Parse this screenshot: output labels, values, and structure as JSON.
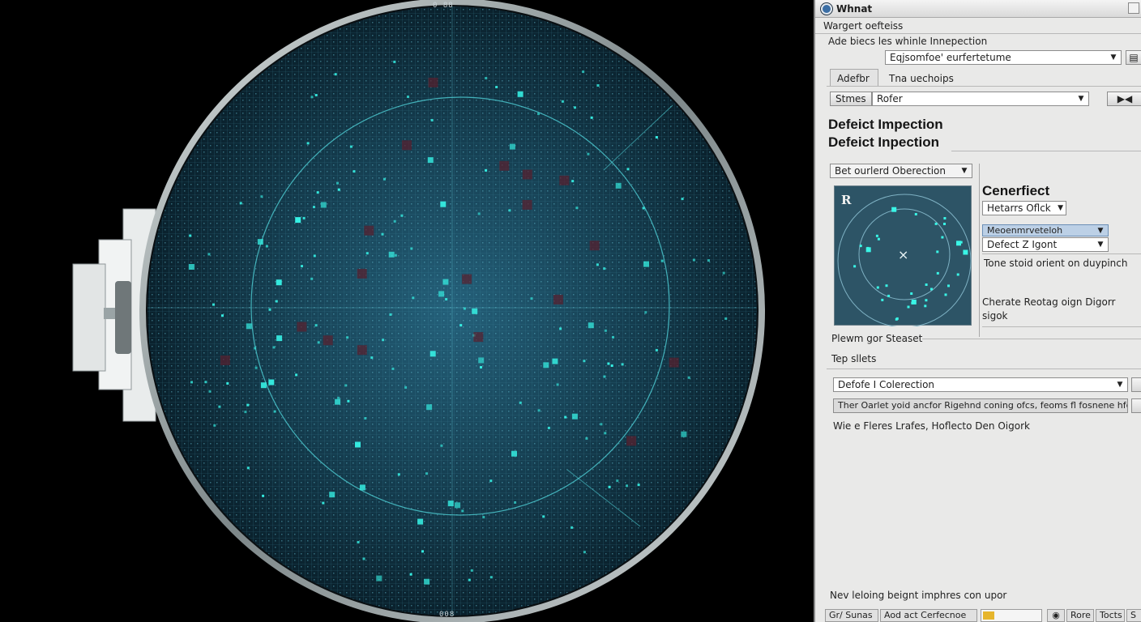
{
  "wafer": {
    "top_marker": "0 88",
    "bottom_marker": "008",
    "colors": {
      "background": "#000000",
      "wafer_surface": "#0e2a37",
      "grid_line": "#2f6e82",
      "defect": "#36f0e4",
      "defect_red": "#5a1e2c",
      "rim": "#b9c2c4"
    }
  },
  "window": {
    "title": "Whnat",
    "menu_label": "Wargert oefteiss"
  },
  "inspection": {
    "label": "Ade biecs les whinle Innepection",
    "combo_value": "Eqjsomfoe' eurfertetume"
  },
  "tabs": [
    {
      "label": "Adefbr",
      "active": true
    },
    {
      "label": "Tna uechoips",
      "active": false
    }
  ],
  "filter": {
    "label": "Stmes",
    "value": "Rofer",
    "button_label": "▶◀"
  },
  "headings": {
    "line1": "Defeict Impection",
    "line2": "Defeict Inpection"
  },
  "detection_dropdown": "Bet ourlerd Oberection",
  "mini_map": {
    "label": "R",
    "center_marker": "×",
    "colors": {
      "bg": "#2d5466",
      "defect": "#3af5e6",
      "circle": "#7fb2c4"
    }
  },
  "defect_detail": {
    "title": "Cenerfiect",
    "field1": "Hetarrs Oflck",
    "select_highlight": "Meoenmrveteloh",
    "select2": "Defect  Z Igont",
    "desc": "Tone stoid orient on duypinch",
    "note_line1": "Cherate Reotag oign Digorr",
    "note_line2": "sigok"
  },
  "preview_label": "Plewm gor Steaset",
  "settings_label": "Tep sllets",
  "collection": {
    "value": "Defofe  I Colerection"
  },
  "info_text": "Ther Oarlet yoid ancfor Rigehnd coning ofcs, feoms fl fosnene hfcbs",
  "meta_text": "Wie e Fleres Lrafes, Hoflecto Den Oigork",
  "footer_note": "Nev leloing beignt imphres con upor",
  "status_bar": {
    "cell1": "Gr/ Sunas",
    "cell2": "Aod act Cerfecnoe",
    "cell3_icon": "search-icon",
    "cell4": "Rore",
    "cell5": "Tocts",
    "cell6": "S"
  }
}
